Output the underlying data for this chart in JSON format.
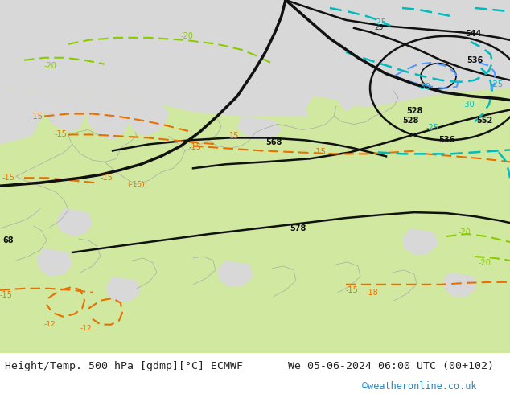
{
  "title_left": "Height/Temp. 500 hPa [gdmp][°C] ECMWF",
  "title_right": "We 05-06-2024 06:00 UTC (00+102)",
  "credit": "©weatheronline.co.uk",
  "bg_color": "#d8d8d8",
  "land_color": "#d0e8a0",
  "sea_color": "#d8d8d8",
  "bottom_bar_color": "#ffffff",
  "text_color": "#222222",
  "credit_color": "#2288cc",
  "orange": "#e87000",
  "yellow_green": "#88cc00",
  "cyan": "#00bbbb",
  "blue": "#5599ff",
  "font_size_title": 9.5,
  "font_size_credit": 8.5
}
